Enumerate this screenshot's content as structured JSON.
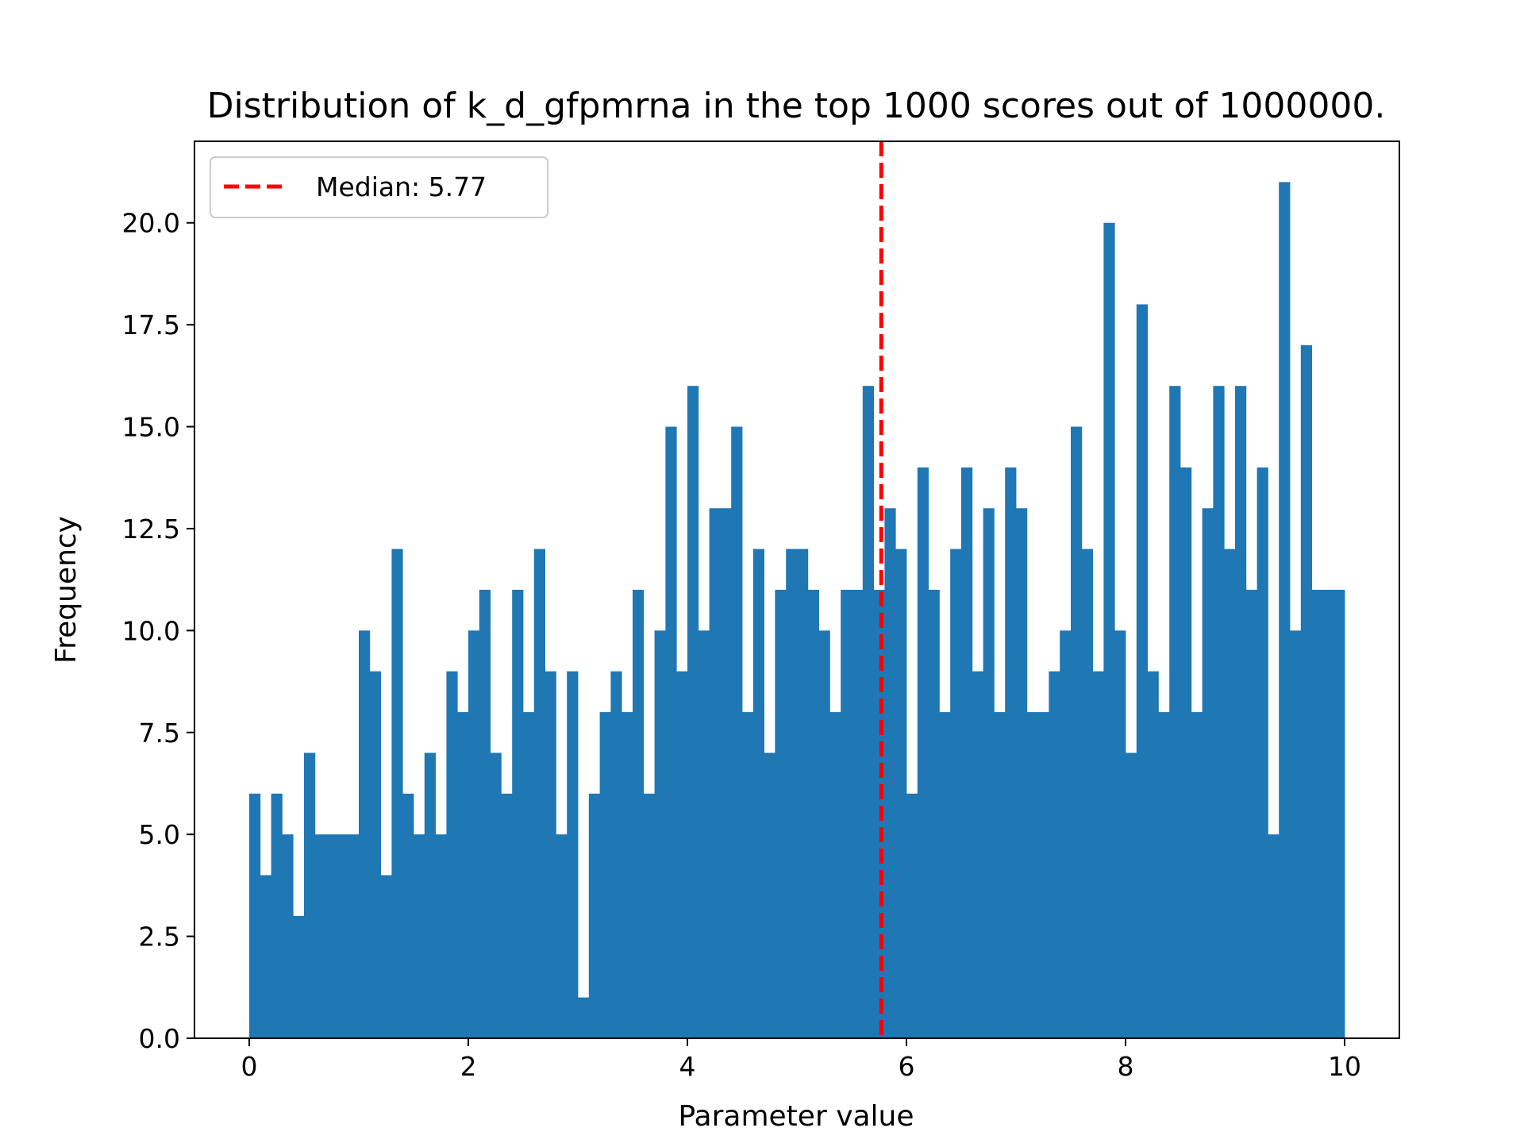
{
  "chart_data": {
    "type": "bar",
    "title": "Distribution of k_d_gfpmrna in the top 1000 scores out of 1000000.",
    "xlabel": "Parameter value",
    "ylabel": "Frequency",
    "xlim": [
      -0.5,
      10.5
    ],
    "ylim": [
      0,
      22
    ],
    "xticks": [
      0,
      2,
      4,
      6,
      8,
      10
    ],
    "xtick_labels": [
      "0",
      "2",
      "4",
      "6",
      "8",
      "10"
    ],
    "yticks": [
      0,
      2.5,
      5,
      7.5,
      10,
      12.5,
      15,
      17.5,
      20
    ],
    "ytick_labels": [
      "0.0",
      "2.5",
      "5.0",
      "7.5",
      "10.0",
      "12.5",
      "15.0",
      "17.5",
      "20.0"
    ],
    "bin_range": [
      0,
      10
    ],
    "bins": 100,
    "bar_color": "#1f77b4",
    "values": [
      6,
      4,
      6,
      5,
      3,
      7,
      5,
      5,
      5,
      5,
      10,
      9,
      4,
      12,
      6,
      5,
      7,
      5,
      9,
      8,
      10,
      11,
      7,
      6,
      11,
      8,
      12,
      9,
      5,
      9,
      1,
      6,
      8,
      9,
      8,
      11,
      6,
      10,
      15,
      9,
      16,
      10,
      13,
      13,
      15,
      8,
      12,
      7,
      11,
      12,
      12,
      11,
      10,
      8,
      11,
      11,
      16,
      11,
      13,
      12,
      6,
      14,
      11,
      8,
      12,
      14,
      9,
      13,
      8,
      14,
      13,
      8,
      8,
      9,
      10,
      15,
      12,
      9,
      20,
      10,
      7,
      18,
      9,
      8,
      16,
      14,
      8,
      13,
      16,
      12,
      16,
      11,
      14,
      5,
      21,
      10,
      17,
      11,
      11,
      11
    ],
    "median": {
      "value": 5.77,
      "label": "Median: 5.77",
      "color": "#ff0000",
      "style": "dashed"
    },
    "legend": {
      "position": "upper left"
    },
    "grid": false
  }
}
